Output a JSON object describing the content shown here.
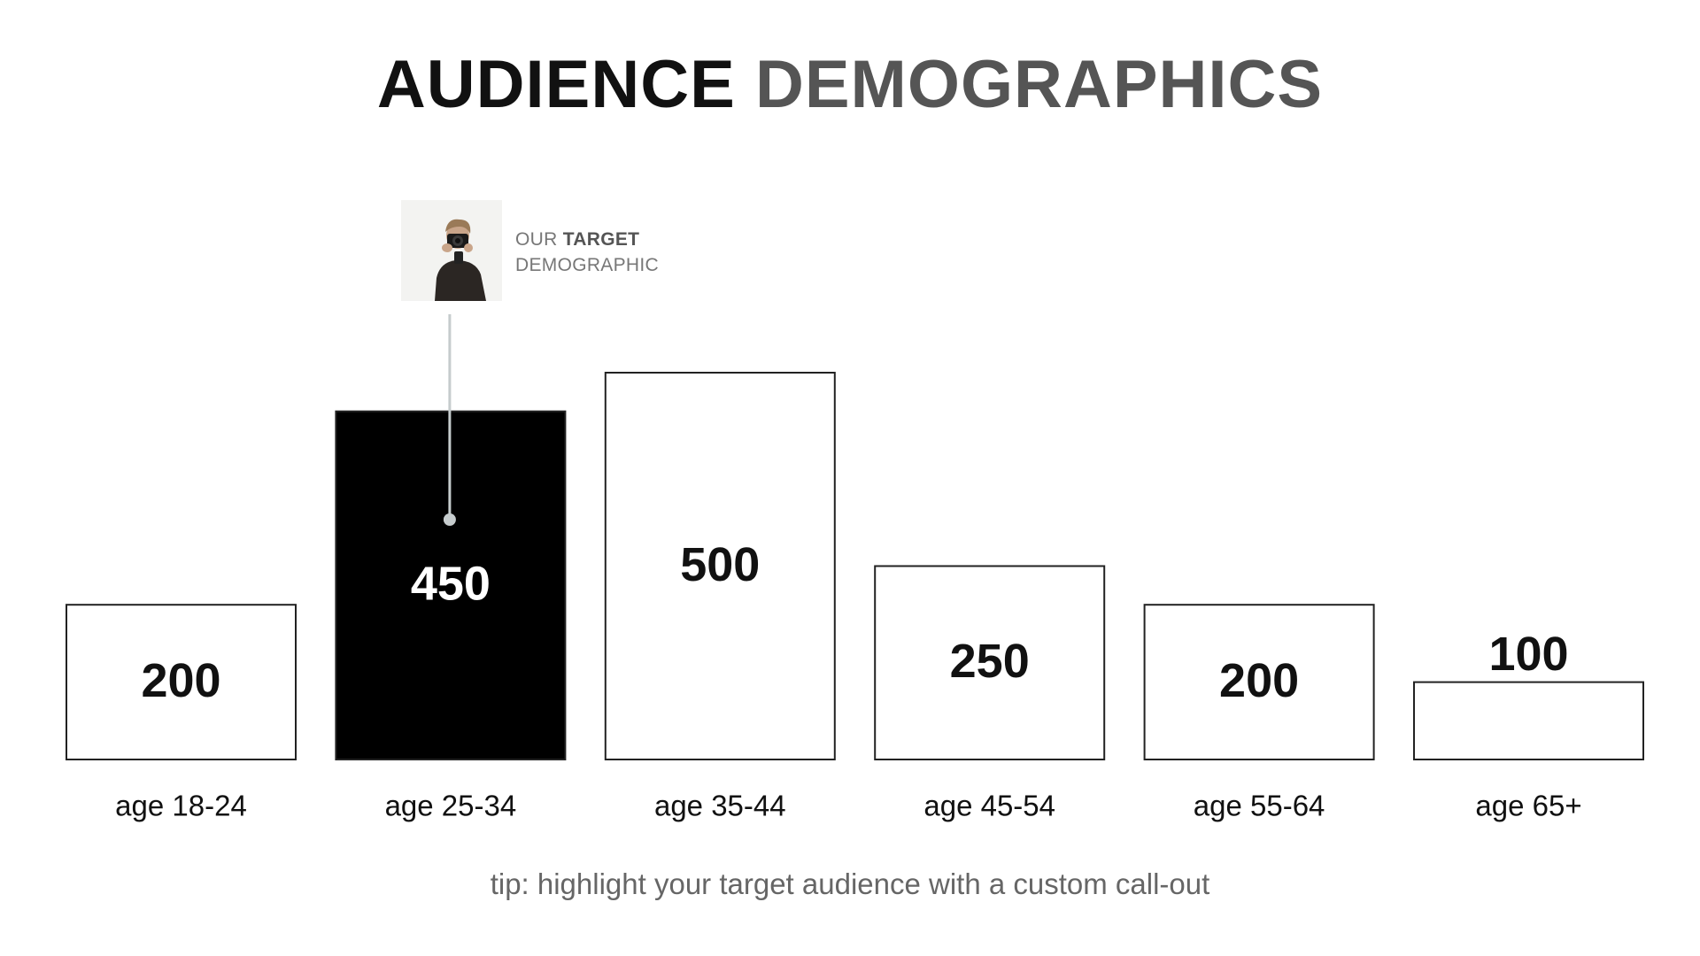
{
  "title": {
    "part_dark": "AUDIENCE",
    "part_grey": "DEMOGRAPHICS"
  },
  "callout": {
    "photo_icon": "photographer-photo",
    "line1_prefix": "OUR",
    "line1_strong": "TARGET",
    "line2": "DEMOGRAPHIC",
    "target_category_index": 1
  },
  "tip": "tip: highlight your target audience with a custom call-out",
  "colors": {
    "highlight_fill": "#000000",
    "bar_fill": "#ffffff",
    "bar_stroke": "#222222",
    "callout_line": "#c6cccd"
  },
  "chart_data": {
    "type": "bar",
    "categories": [
      "age 18-24",
      "age 25-34",
      "age 35-44",
      "age 45-54",
      "age 55-64",
      "age 65+"
    ],
    "values": [
      200,
      450,
      500,
      250,
      200,
      100
    ],
    "highlight_index": 1,
    "ylim": [
      0,
      500
    ],
    "grid": false,
    "xlabel": "",
    "ylabel": ""
  }
}
